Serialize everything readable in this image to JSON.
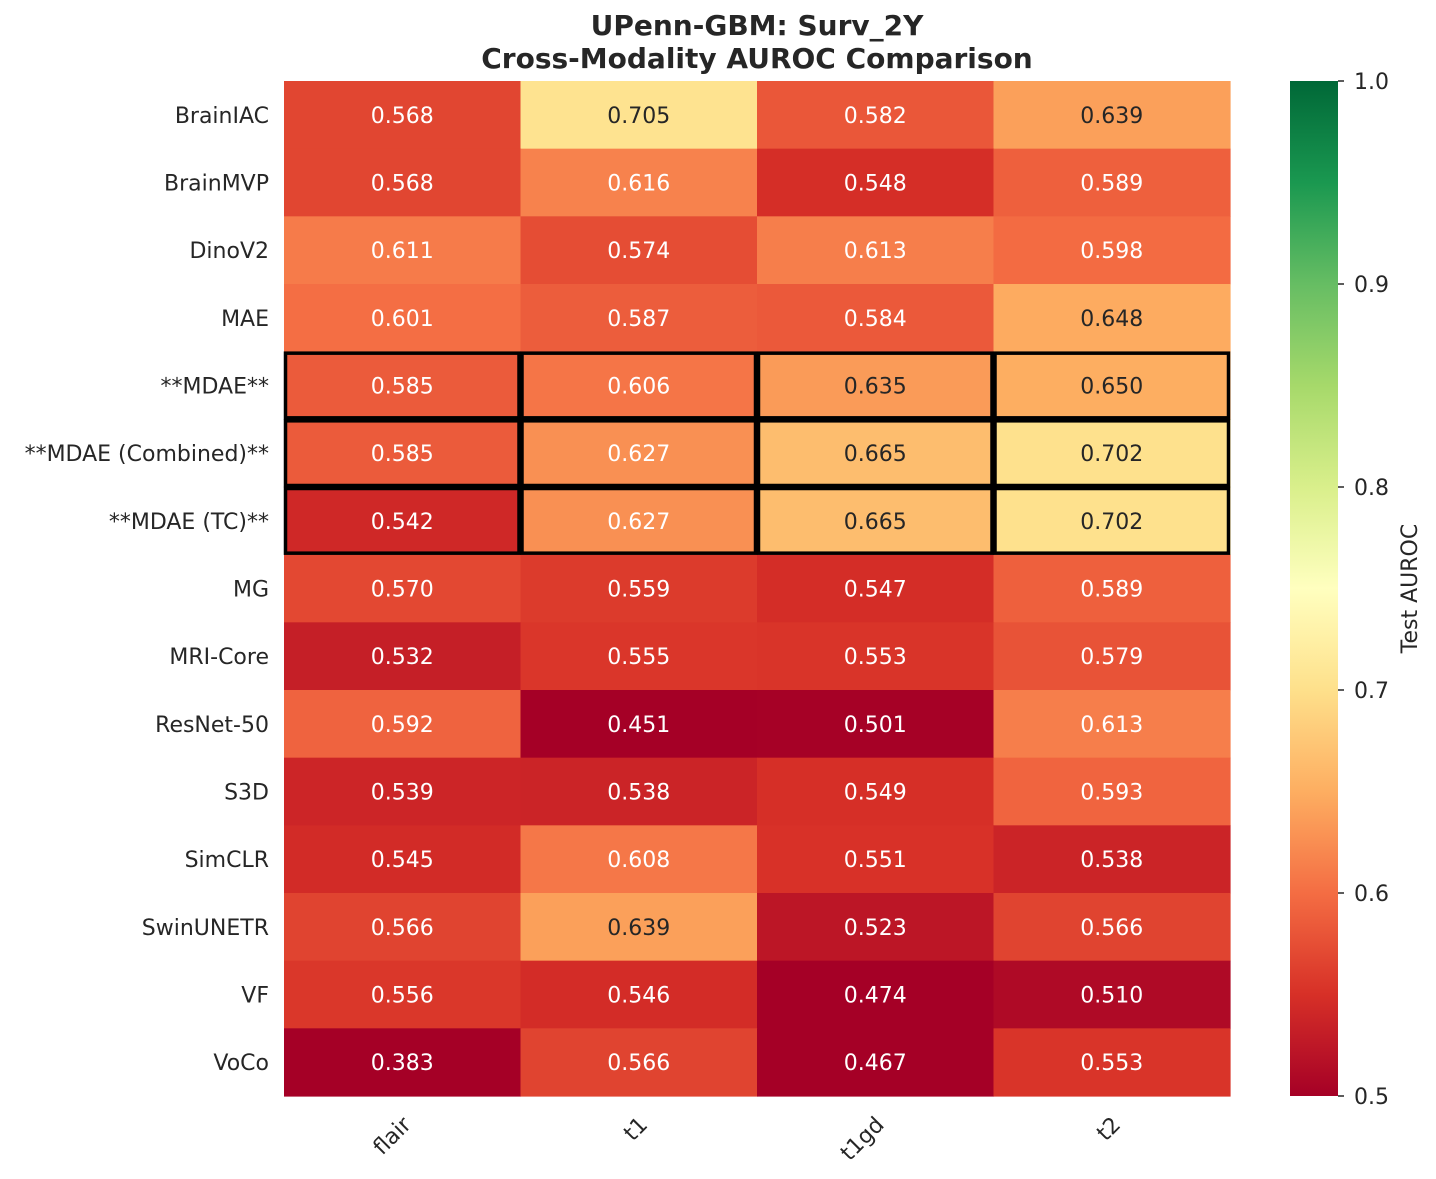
{
  "chart_data": {
    "type": "heatmap",
    "title_lines": [
      "UPenn-GBM: Surv_2Y",
      "Cross-Modality AUROC Comparison"
    ],
    "columns": [
      "flair",
      "t1",
      "t1gd",
      "t2"
    ],
    "rows": [
      "BrainIAC",
      "BrainMVP",
      "DinoV2",
      "MAE",
      "**MDAE**",
      "**MDAE (Combined)**",
      "**MDAE (TC)**",
      "MG",
      "MRI-Core",
      "ResNet-50",
      "S3D",
      "SimCLR",
      "SwinUNETR",
      "VF",
      "VoCo"
    ],
    "values": [
      [
        0.568,
        0.705,
        0.582,
        0.639
      ],
      [
        0.568,
        0.616,
        0.548,
        0.589
      ],
      [
        0.611,
        0.574,
        0.613,
        0.598
      ],
      [
        0.601,
        0.587,
        0.584,
        0.648
      ],
      [
        0.585,
        0.606,
        0.635,
        0.65
      ],
      [
        0.585,
        0.627,
        0.665,
        0.702
      ],
      [
        0.542,
        0.627,
        0.665,
        0.702
      ],
      [
        0.57,
        0.559,
        0.547,
        0.589
      ],
      [
        0.532,
        0.555,
        0.553,
        0.579
      ],
      [
        0.592,
        0.451,
        0.501,
        0.613
      ],
      [
        0.539,
        0.538,
        0.549,
        0.593
      ],
      [
        0.545,
        0.608,
        0.551,
        0.538
      ],
      [
        0.566,
        0.639,
        0.523,
        0.566
      ],
      [
        0.556,
        0.546,
        0.474,
        0.51
      ],
      [
        0.383,
        0.566,
        0.467,
        0.553
      ]
    ],
    "highlighted_rows": [
      "**MDAE**",
      "**MDAE (Combined)**",
      "**MDAE (TC)**"
    ],
    "colormap": "RdYlGn",
    "vmin": 0.5,
    "vmax": 1.0,
    "colorbar_label": "Test AUROC",
    "colorbar_ticks": [
      "0.5",
      "0.6",
      "0.7",
      "0.8",
      "0.9",
      "1.0"
    ],
    "legend_position": "right"
  }
}
